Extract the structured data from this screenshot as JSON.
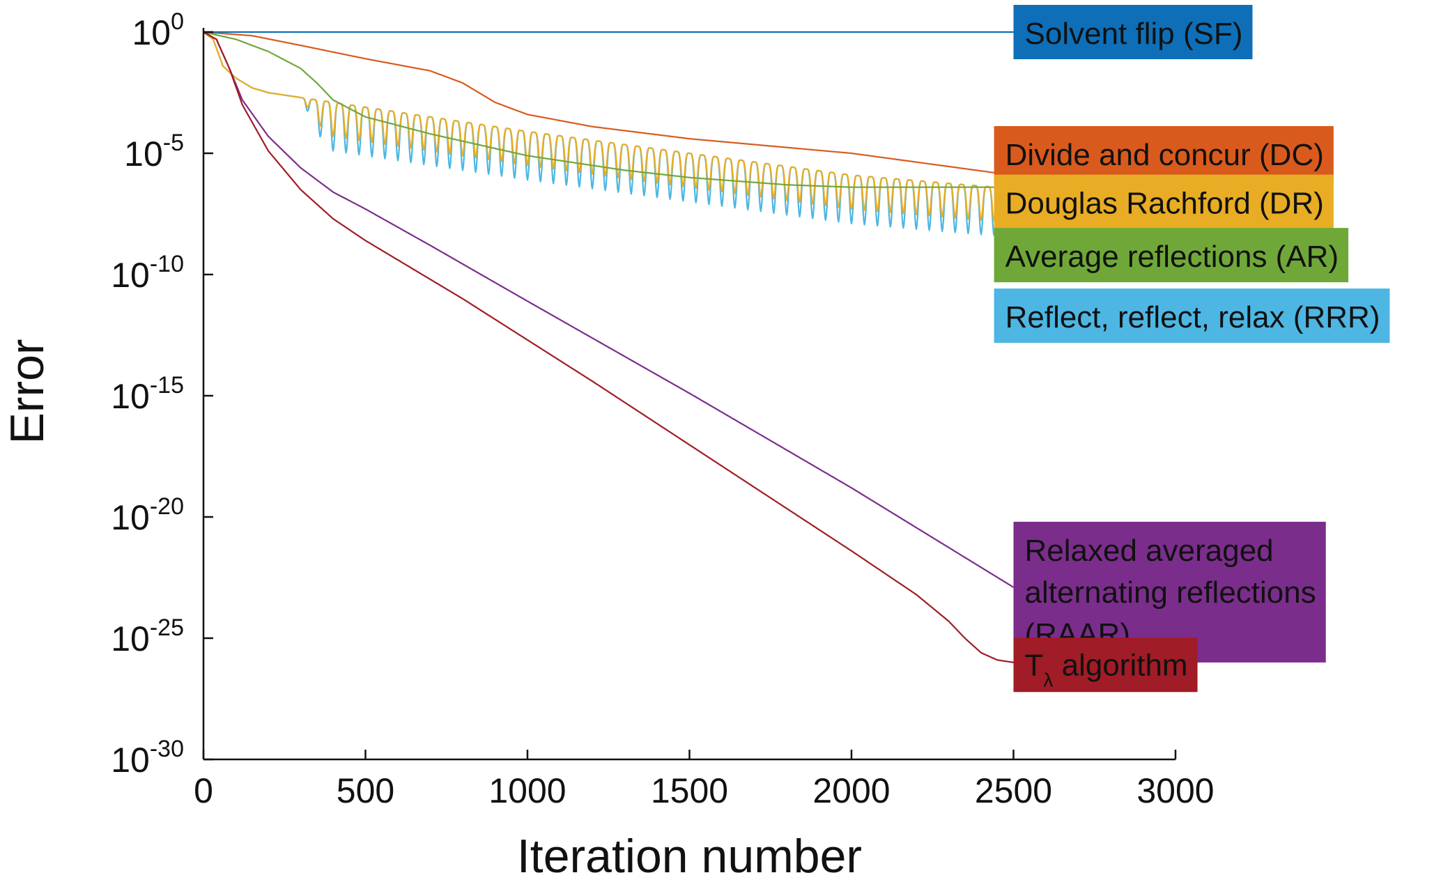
{
  "chart_data": {
    "type": "line",
    "title": "",
    "xlabel": "Iteration number",
    "ylabel": "Error",
    "xlim": [
      0,
      3000
    ],
    "ylim_log10": [
      -30,
      0
    ],
    "yscale": "log",
    "grid": false,
    "legend_placement": "labels at right end of each line",
    "x_ticks": [
      "0",
      "500",
      "1000",
      "1500",
      "2000",
      "2500",
      "3000"
    ],
    "y_ticks": [
      {
        "base": "10",
        "exp": "0"
      },
      {
        "base": "10",
        "exp": "-5"
      },
      {
        "base": "10",
        "exp": "-10"
      },
      {
        "base": "10",
        "exp": "-15"
      },
      {
        "base": "10",
        "exp": "-20"
      },
      {
        "base": "10",
        "exp": "-25"
      },
      {
        "base": "10",
        "exp": "-30"
      }
    ],
    "series": [
      {
        "name": "Solvent flip (SF)",
        "label_lines": [
          "Solvent flip (SF)"
        ],
        "color": "#0e6fb8",
        "label_y_log10": 0,
        "x": [
          0,
          2500
        ],
        "log10_y": [
          0,
          0
        ]
      },
      {
        "name": "Divide and concur (DC)",
        "label_lines": [
          "Divide and concur (DC)"
        ],
        "color": "#d95a1d",
        "label_y_log10": -5,
        "x": [
          0,
          150,
          300,
          500,
          700,
          800,
          900,
          1000,
          1200,
          1500,
          2000,
          2440
        ],
        "log10_y": [
          0,
          -0.15,
          -0.55,
          -1.1,
          -1.6,
          -2.1,
          -2.9,
          -3.4,
          -3.9,
          -4.4,
          -5.0,
          -5.8
        ]
      },
      {
        "name": "Douglas Rachford (DR)",
        "label_lines": [
          "Douglas Rachford (DR)"
        ],
        "color": "#e8ad24",
        "label_y_log10": -7,
        "x": [
          0,
          30,
          60,
          100,
          150,
          200,
          300,
          400,
          500,
          700,
          1000,
          1500,
          2000,
          2440
        ],
        "log10_y": [
          0,
          -0.3,
          -1.4,
          -1.9,
          -2.3,
          -2.5,
          -2.7,
          -2.9,
          -3.1,
          -3.5,
          -4.1,
          -5.0,
          -5.9,
          -6.4
        ],
        "oscillation": {
          "start": 300,
          "period": 40,
          "amplitude": 1.4
        }
      },
      {
        "name": "Average reflections (AR)",
        "label_lines": [
          "Average reflections (AR)"
        ],
        "color": "#6fa838",
        "label_y_log10": -9.2,
        "x": [
          0,
          100,
          200,
          300,
          350,
          400,
          500,
          700,
          1000,
          1300,
          1500,
          1800,
          2000,
          2440
        ],
        "log10_y": [
          0,
          -0.3,
          -0.8,
          -1.5,
          -2.1,
          -2.8,
          -3.5,
          -4.2,
          -5.1,
          -5.7,
          -6.0,
          -6.3,
          -6.4,
          -6.4
        ]
      },
      {
        "name": "Reflect, reflect, relax (RRR)",
        "label_lines": [
          "Reflect, reflect, relax (RRR)"
        ],
        "color": "#4db6e3",
        "label_y_log10": -11.7,
        "x": [
          0,
          30,
          60,
          100,
          150,
          200,
          300,
          400,
          500,
          700,
          1000,
          1500,
          2000,
          2440
        ],
        "log10_y": [
          0,
          -0.3,
          -1.4,
          -1.9,
          -2.3,
          -2.5,
          -2.7,
          -2.9,
          -3.1,
          -3.5,
          -4.1,
          -5.0,
          -5.9,
          -6.4
        ],
        "oscillation": {
          "start": 300,
          "period": 40,
          "amplitude": 2.0
        }
      },
      {
        "name": "Relaxed averaged alternating reflections (RAAR)",
        "label_lines": [
          "Relaxed averaged",
          "alternating reflections",
          "(RAAR)"
        ],
        "color": "#7b2d8c",
        "label_y_log10": -23.1,
        "x": [
          0,
          40,
          80,
          120,
          200,
          300,
          400,
          500,
          700,
          1000,
          1500,
          2000,
          2500
        ],
        "log10_y": [
          0,
          -0.3,
          -1.5,
          -2.8,
          -4.3,
          -5.6,
          -6.6,
          -7.3,
          -8.8,
          -11.1,
          -14.9,
          -18.8,
          -22.9
        ]
      },
      {
        "name": "Tλ algorithm",
        "label_lines": [
          "T",
          " algorithm"
        ],
        "label_subscript": "λ",
        "color": "#a01c26",
        "label_y_log10": -26.1,
        "x": [
          0,
          40,
          80,
          120,
          200,
          300,
          400,
          500,
          800,
          1200,
          1600,
          2000,
          2200,
          2300,
          2350,
          2400,
          2450,
          2500
        ],
        "log10_y": [
          0,
          -0.3,
          -1.5,
          -3.0,
          -4.9,
          -6.5,
          -7.7,
          -8.6,
          -11.0,
          -14.4,
          -17.9,
          -21.4,
          -23.2,
          -24.3,
          -25.0,
          -25.6,
          -25.9,
          -26.0
        ]
      }
    ]
  }
}
